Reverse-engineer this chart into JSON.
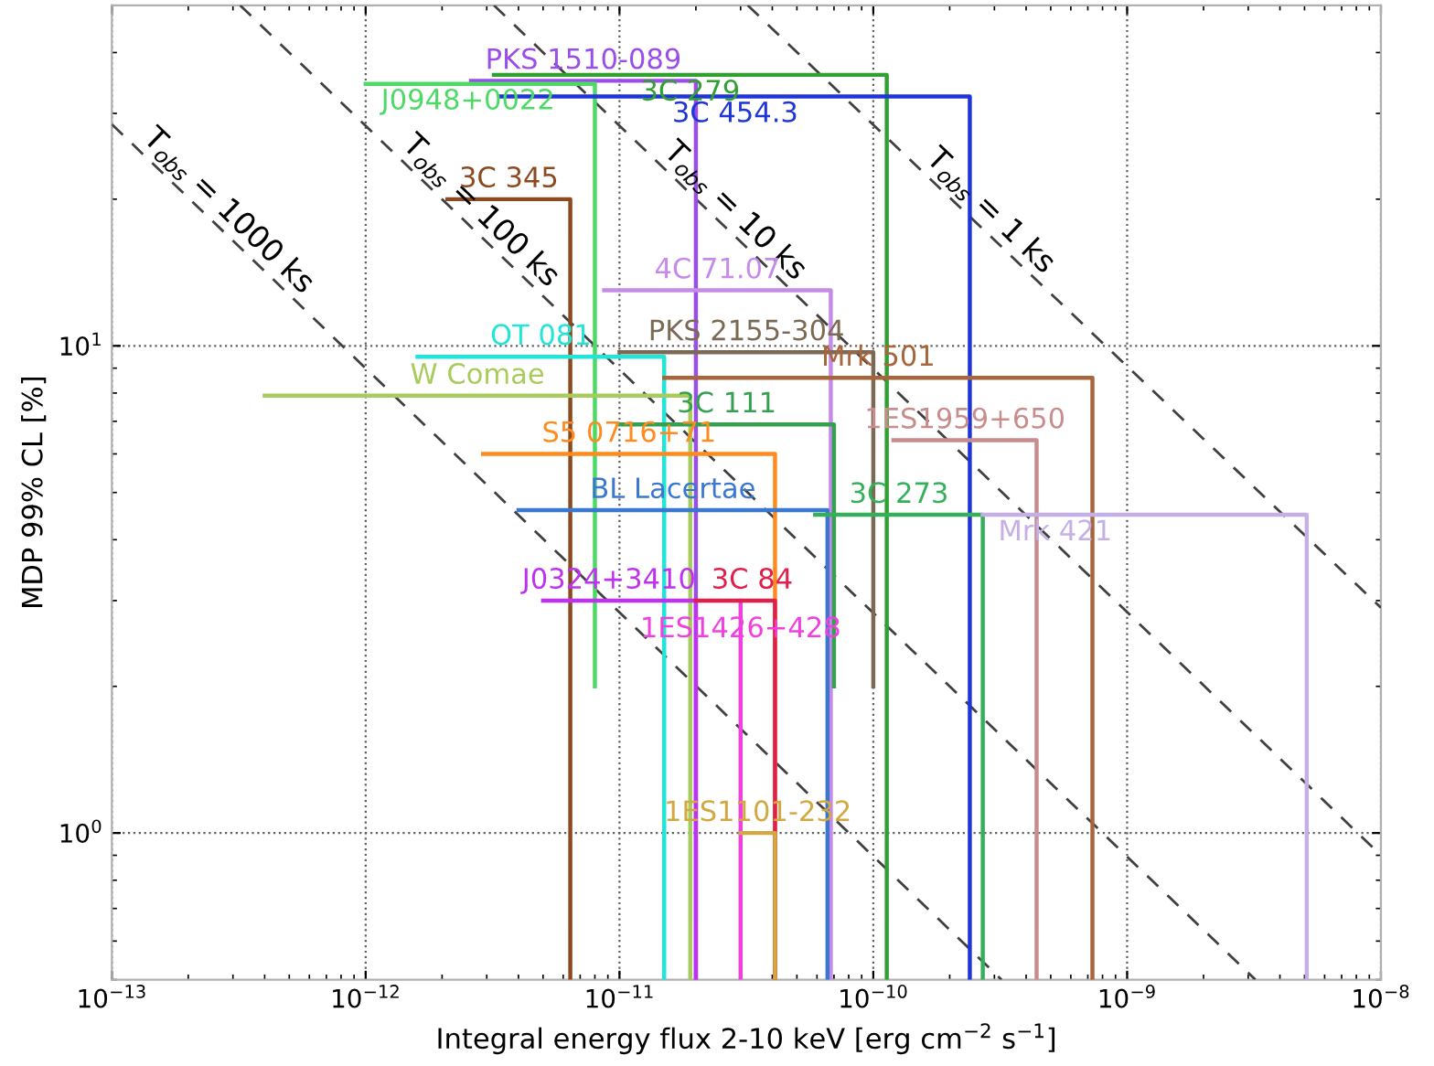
{
  "chart_data": {
    "type": "line",
    "xlabel": "Integral energy flux 2-10 keV [erg cm$^{−2}$ s$^{−1}$]",
    "ylabel": "MDP 99% CL [%]",
    "log": "xy",
    "grid": true,
    "xlim": [
      1e-13,
      1e-08
    ],
    "ylim": [
      0.5,
      50
    ],
    "xticks": [
      {
        "value": 1e-13,
        "label": "10$^{−13}$"
      },
      {
        "value": 1e-12,
        "label": "10$^{−12}$"
      },
      {
        "value": 1e-11,
        "label": "10$^{−11}$"
      },
      {
        "value": 1e-10,
        "label": "10$^{−10}$"
      },
      {
        "value": 1e-09,
        "label": "10$^{−9}$"
      },
      {
        "value": 1e-08,
        "label": "10$^{−8}$"
      }
    ],
    "yticks": [
      {
        "value": 1,
        "label": "10$^{0}$"
      },
      {
        "value": 10,
        "label": "10$^{1}$"
      }
    ],
    "series": [
      {
        "name": "T$_{obs}$ = 1000 ks",
        "color": "#404040",
        "line_style": "dashed",
        "x": [
          1e-13,
          3.2e-10
        ],
        "values": [
          28.5,
          0.5
        ]
      },
      {
        "name": "T$_{obs}$ = 100 ks",
        "color": "#404040",
        "line_style": "dashed",
        "x": [
          3.2e-13,
          3.2e-09
        ],
        "values": [
          50,
          0.5
        ]
      },
      {
        "name": "T$_{obs}$ = 10 ks",
        "color": "#404040",
        "line_style": "dashed",
        "x": [
          3.2e-12,
          1e-08
        ],
        "values": [
          50,
          0.9
        ]
      },
      {
        "name": "T$_{obs}$ = 1 ks",
        "color": "#404040",
        "line_style": "dashed",
        "x": [
          3.2e-11,
          1e-08
        ],
        "values": [
          50,
          2.9
        ]
      },
      {
        "name": "PKS 1510-089",
        "color": "#9b4dea",
        "x": [
          2.6e-12,
          2e-11,
          2e-11
        ],
        "values": [
          35,
          35,
          0.5
        ]
      },
      {
        "name": "J0948+0022",
        "color": "#4cd964",
        "x": [
          1e-12,
          8e-12,
          8e-12
        ],
        "values": [
          34.5,
          34.5,
          2.0
        ]
      },
      {
        "name": "3C 279",
        "color": "#30a030",
        "x": [
          3.2e-12,
          1.13e-10,
          1.13e-10
        ],
        "values": [
          36,
          36,
          0.5
        ]
      },
      {
        "name": "3C 454.3",
        "color": "#1f35d8",
        "x": [
          3.4e-12,
          2.4e-10,
          2.4e-10
        ],
        "values": [
          32.5,
          32.5,
          0.5
        ]
      },
      {
        "name": "3C 345",
        "color": "#8b4a1f",
        "x": [
          2.1e-12,
          6.4e-12,
          6.4e-12
        ],
        "values": [
          20,
          20,
          0.5
        ]
      },
      {
        "name": "4C 71.07",
        "color": "#c68be8",
        "x": [
          8.7e-12,
          6.8e-11,
          6.8e-11
        ],
        "values": [
          13,
          13,
          0.5
        ]
      },
      {
        "name": "OT 081",
        "color": "#22e5d8",
        "x": [
          1.6e-12,
          1.5e-11,
          1.5e-11
        ],
        "values": [
          9.5,
          9.5,
          0.5
        ]
      },
      {
        "name": "PKS 2155-304",
        "color": "#7a6a55",
        "x": [
          1e-11,
          1e-10,
          1e-10
        ],
        "values": [
          9.7,
          9.7,
          2.0
        ]
      },
      {
        "name": "Mrk 501",
        "color": "#a8643a",
        "x": [
          1.5e-11,
          7.3e-10,
          7.3e-10
        ],
        "values": [
          8.6,
          8.6,
          0.5
        ]
      },
      {
        "name": "W Comae",
        "color": "#a8cc5c",
        "x": [
          4e-13,
          1.9e-11,
          1.9e-11
        ],
        "values": [
          7.9,
          7.9,
          0.5
        ]
      },
      {
        "name": "3C 111",
        "color": "#35a050",
        "x": [
          1e-11,
          7e-11,
          7e-11
        ],
        "values": [
          6.9,
          6.9,
          2.0
        ]
      },
      {
        "name": "1ES1959+650",
        "color": "#c88c8c",
        "x": [
          1.2e-10,
          4.4e-10,
          4.4e-10
        ],
        "values": [
          6.4,
          6.4,
          0.5
        ]
      },
      {
        "name": "S5 0716+71",
        "color": "#ff8a1e",
        "x": [
          2.9e-12,
          4.1e-11,
          4.1e-11
        ],
        "values": [
          6.0,
          6.0,
          0.5
        ]
      },
      {
        "name": "BL Lacertae",
        "color": "#3a78d0",
        "x": [
          4e-12,
          6.6e-11,
          6.6e-11
        ],
        "values": [
          4.6,
          4.6,
          0.5
        ]
      },
      {
        "name": "3C 273",
        "color": "#35b05a",
        "x": [
          5.9e-11,
          2.7e-10,
          2.7e-10
        ],
        "values": [
          4.5,
          4.5,
          0.5
        ]
      },
      {
        "name": "Mrk 421",
        "color": "#c4b0e4",
        "x": [
          2.7e-10,
          5.1e-09,
          5.1e-09
        ],
        "values": [
          4.5,
          4.5,
          0.5
        ]
      },
      {
        "name": "J0324+3410",
        "color": "#c030f0",
        "x": [
          5e-12,
          2e-11,
          2e-11
        ],
        "values": [
          3.0,
          3.0,
          0.5
        ]
      },
      {
        "name": "1ES1426+428",
        "color": "#f040e0",
        "x": [
          3e-11,
          3e-11
        ],
        "values": [
          3.0,
          0.5
        ]
      },
      {
        "name": "3C 84",
        "color": "#e0204a",
        "x": [
          2e-11,
          4.1e-11,
          4.1e-11
        ],
        "values": [
          3.0,
          3.0,
          0.5
        ]
      },
      {
        "name": "1ES1101-232",
        "color": "#d4a840",
        "x": [
          3e-11,
          4.1e-11,
          4.1e-11
        ],
        "values": [
          1.0,
          1.0,
          0.5
        ]
      }
    ]
  }
}
